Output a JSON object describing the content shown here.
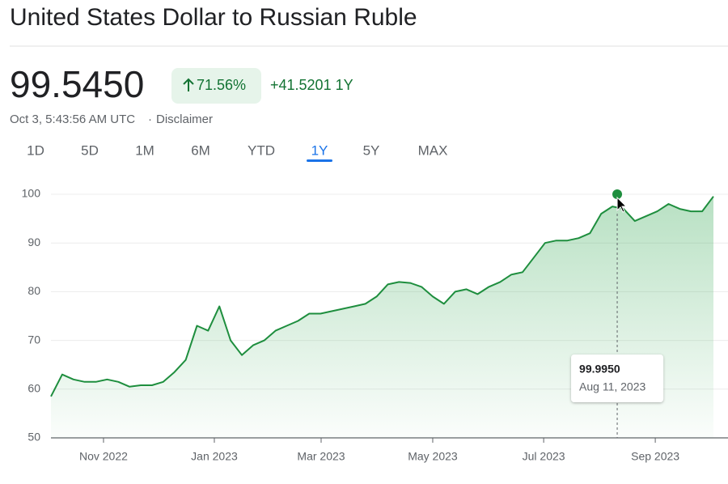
{
  "header": {
    "title": "United States Dollar to Russian Ruble",
    "price": "99.5450",
    "change_percent": "71.56%",
    "change": "+41.5201 1Y",
    "timestamp": "Oct 3, 5:43:56 AM UTC",
    "disclaimer": "Disclaimer"
  },
  "tabs": [
    "1D",
    "5D",
    "1M",
    "6M",
    "YTD",
    "1Y",
    "5Y",
    "MAX"
  ],
  "active_tab": "1Y",
  "chart_data": {
    "type": "area",
    "color": "#1e8e3e",
    "values": [
      58.5,
      63,
      62,
      61.5,
      61.5,
      62,
      61.5,
      60.5,
      60.8,
      60.8,
      61.5,
      63.5,
      66,
      73,
      72,
      77,
      70,
      67,
      69,
      70,
      72,
      73,
      74,
      75.5,
      75.5,
      76,
      76.5,
      77,
      77.5,
      79,
      81.5,
      82,
      81.8,
      81,
      79,
      77.5,
      80,
      80.5,
      79.5,
      81,
      82,
      83.5,
      84,
      87,
      90,
      90.5,
      90.5,
      91,
      92,
      96,
      97.5,
      97,
      94.5,
      95.5,
      96.5,
      98,
      97,
      96.5,
      96.5,
      99.545
    ],
    "xticks": [
      {
        "value": 4.68,
        "label": "Nov 2022"
      },
      {
        "value": 14.55,
        "label": "Jan 2023"
      },
      {
        "value": 24.06,
        "label": "Mar 2023"
      },
      {
        "value": 34.0,
        "label": "May 2023"
      },
      {
        "value": 43.88,
        "label": "Jul 2023"
      },
      {
        "value": 53.82,
        "label": "Sep 2023"
      }
    ],
    "ylim": [
      50,
      100
    ],
    "yticks": [
      50,
      60,
      70,
      80,
      90,
      100
    ],
    "grid": true,
    "tooltip": {
      "x": 50.43,
      "value": 99.995,
      "label": "99.9950",
      "date": "Aug 11, 2023"
    }
  }
}
